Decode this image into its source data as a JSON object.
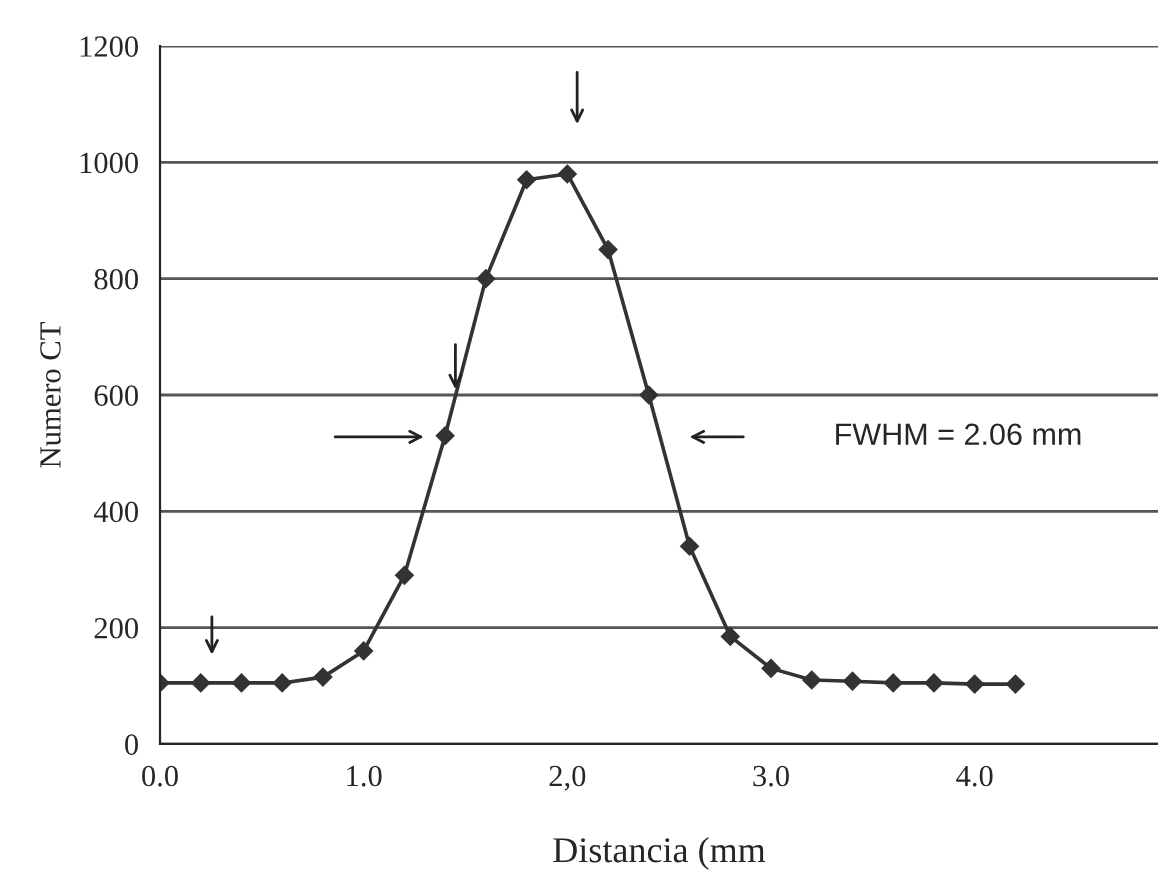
{
  "chart_data": {
    "type": "line",
    "xlabel": "Distancia (mm",
    "ylabel": "Numero CT",
    "x": [
      0,
      0.2,
      0.4,
      0.6,
      0.8,
      1.0,
      1.2,
      1.4,
      1.6,
      1.8,
      2.0,
      2.2,
      2.4,
      2.6,
      2.8,
      3.0,
      3.2,
      3.4,
      3.6,
      3.8,
      4.0,
      4.2
    ],
    "series": [
      {
        "color": "#333333",
        "values": [
          105,
          105,
          105,
          105,
          115,
          160,
          290,
          530,
          800,
          970,
          980,
          850,
          600,
          340,
          185,
          130,
          110,
          108,
          105,
          105,
          103,
          103
        ]
      }
    ],
    "xlim": [
      0,
      4.9
    ],
    "xticks": [
      {
        "value": 0,
        "label": "0.0"
      },
      {
        "value": 1,
        "label": "1.0"
      },
      {
        "value": 2,
        "label": "2,0"
      },
      {
        "value": 3,
        "label": "3.0"
      },
      {
        "value": 4,
        "label": "4.0"
      }
    ],
    "ylim": [
      0,
      1200
    ],
    "yticks": [
      0,
      200,
      400,
      600,
      800,
      1000,
      1200
    ],
    "grid": "y",
    "marker": "diamond",
    "line_style": "solid",
    "annotations": [
      "FWHM = 2.06 mm"
    ]
  }
}
